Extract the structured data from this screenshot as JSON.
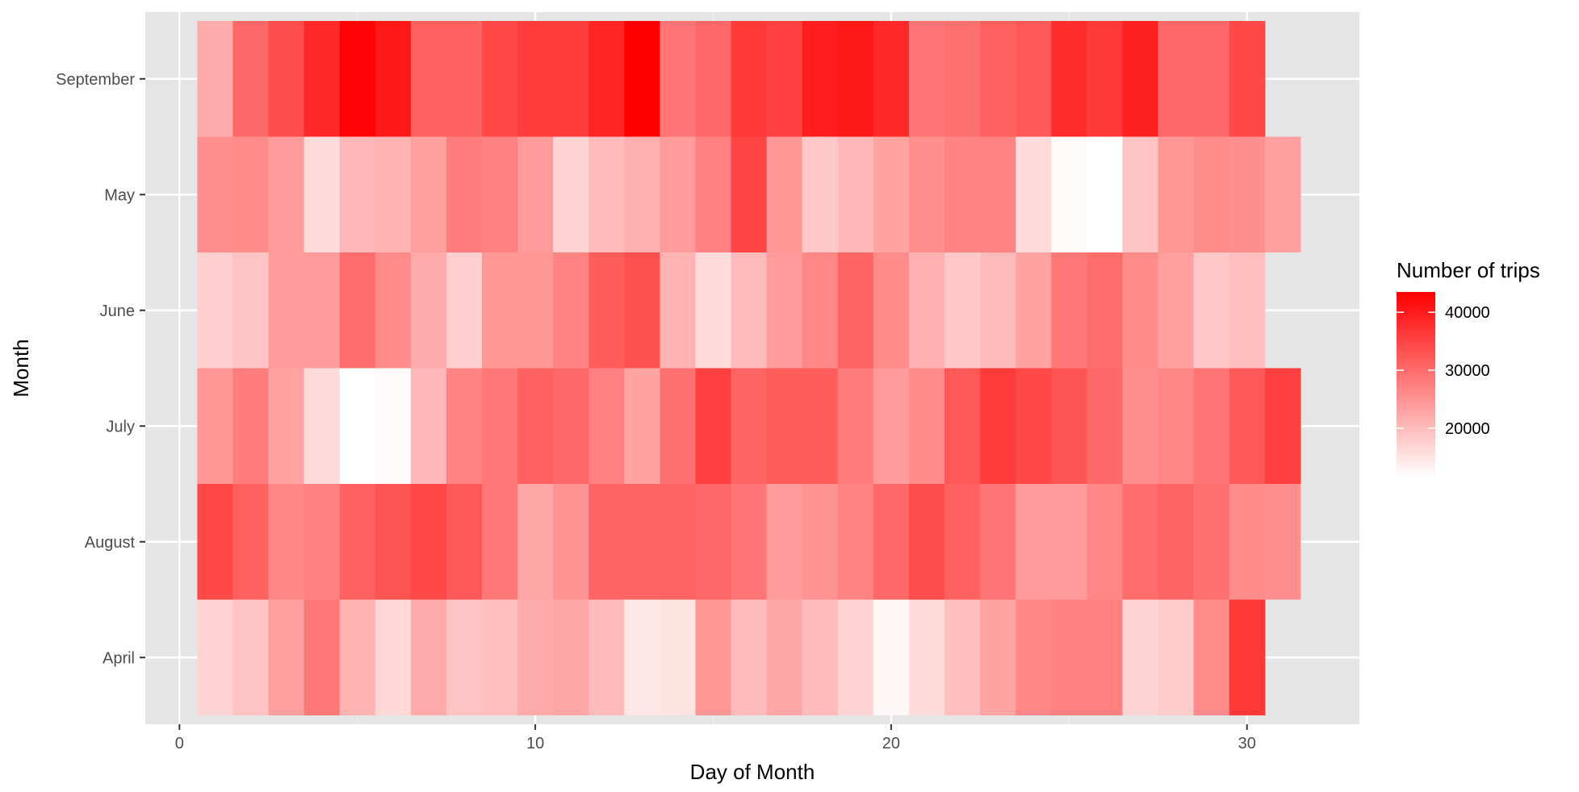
{
  "chart_data": {
    "type": "heatmap",
    "xlabel": "Day of Month",
    "ylabel": "Month",
    "x_ticks": [
      0,
      10,
      20,
      30
    ],
    "xlim": [
      -0.96,
      33.16
    ],
    "y_categories_bottom_to_top": [
      "April",
      "August",
      "July",
      "June",
      "May",
      "September"
    ],
    "legend": {
      "title": "Number of trips",
      "ticks": [
        20000,
        30000,
        40000
      ],
      "tick_labels": [
        "20000",
        "30000",
        "40000"
      ],
      "range": [
        11500,
        43500
      ],
      "low_color": "#ffffff",
      "high_color": "#ff0000",
      "placement": "right"
    },
    "grid": true,
    "panel_background": "#e5e5e5",
    "series": [
      {
        "name": "September",
        "days": [
          1,
          2,
          3,
          4,
          5,
          6,
          7,
          8,
          9,
          10,
          11,
          12,
          13,
          14,
          15,
          16,
          17,
          18,
          19,
          20,
          21,
          22,
          23,
          24,
          25,
          26,
          27,
          28,
          29,
          30
        ],
        "values": [
          22000,
          30500,
          34000,
          38500,
          43000,
          40500,
          31500,
          31500,
          34500,
          36000,
          36000,
          39000,
          43500,
          29000,
          30500,
          36500,
          35500,
          40000,
          40500,
          38500,
          29000,
          29500,
          31500,
          32500,
          38000,
          36500,
          39500,
          30500,
          30500,
          34500
        ]
      },
      {
        "name": "May",
        "days": [
          1,
          2,
          3,
          4,
          5,
          6,
          7,
          8,
          9,
          10,
          11,
          12,
          13,
          14,
          15,
          16,
          17,
          18,
          19,
          20,
          21,
          22,
          23,
          24,
          25,
          26,
          27,
          28,
          29,
          30,
          31
        ],
        "values": [
          25500,
          26000,
          24000,
          16000,
          20500,
          21000,
          23500,
          28000,
          27500,
          24000,
          17000,
          20000,
          21500,
          24000,
          27500,
          35000,
          24500,
          18500,
          20500,
          23000,
          25500,
          27000,
          27000,
          16000,
          12000,
          11500,
          19000,
          24500,
          26000,
          25500,
          23500
        ]
      },
      {
        "name": "June",
        "days": [
          1,
          2,
          3,
          4,
          5,
          6,
          7,
          8,
          9,
          10,
          11,
          12,
          13,
          14,
          15,
          16,
          17,
          18,
          19,
          20,
          21,
          22,
          23,
          24,
          25,
          26,
          27,
          28,
          29,
          30
        ],
        "values": [
          17500,
          19000,
          24000,
          24000,
          30000,
          26000,
          22000,
          17500,
          24500,
          24500,
          27000,
          32000,
          33500,
          21000,
          16000,
          20000,
          24000,
          26500,
          31000,
          26000,
          21500,
          18500,
          20000,
          23000,
          28500,
          30000,
          26000,
          23500,
          18500,
          19500
        ]
      },
      {
        "name": "July",
        "days": [
          1,
          2,
          3,
          4,
          5,
          6,
          7,
          8,
          9,
          10,
          11,
          12,
          13,
          14,
          15,
          16,
          17,
          18,
          19,
          20,
          21,
          22,
          23,
          24,
          25,
          26,
          27,
          28,
          29,
          30,
          31
        ],
        "values": [
          24500,
          28000,
          23000,
          16000,
          11500,
          12000,
          20500,
          27000,
          28500,
          31500,
          30500,
          27500,
          23000,
          29500,
          35500,
          31000,
          32000,
          32000,
          28000,
          24000,
          26000,
          32500,
          36000,
          34500,
          33000,
          30500,
          25500,
          26500,
          29000,
          32500,
          35500
        ]
      },
      {
        "name": "August",
        "days": [
          1,
          2,
          3,
          4,
          5,
          6,
          7,
          8,
          9,
          10,
          11,
          12,
          13,
          14,
          15,
          16,
          17,
          18,
          19,
          20,
          21,
          22,
          23,
          24,
          25,
          26,
          27,
          28,
          29,
          30,
          31
        ],
        "values": [
          34500,
          31500,
          26500,
          27500,
          31500,
          33000,
          34500,
          32500,
          28500,
          22500,
          25000,
          31000,
          31000,
          31000,
          30500,
          29000,
          24000,
          25000,
          27000,
          30500,
          34000,
          31500,
          29000,
          24000,
          24000,
          26500,
          30000,
          31000,
          29500,
          26000,
          25500
        ]
      },
      {
        "name": "April",
        "days": [
          1,
          2,
          3,
          4,
          5,
          6,
          7,
          8,
          9,
          10,
          11,
          12,
          13,
          14,
          15,
          16,
          17,
          18,
          19,
          20,
          21,
          22,
          23,
          24,
          25,
          26,
          27,
          28,
          29,
          30
        ],
        "values": [
          17000,
          19000,
          23500,
          28500,
          21000,
          16500,
          22000,
          19000,
          19500,
          22000,
          22500,
          20000,
          14500,
          15000,
          24500,
          20000,
          22500,
          20000,
          17000,
          12500,
          16000,
          19500,
          23000,
          26500,
          27500,
          27500,
          17000,
          18000,
          26000,
          36500
        ]
      }
    ]
  }
}
